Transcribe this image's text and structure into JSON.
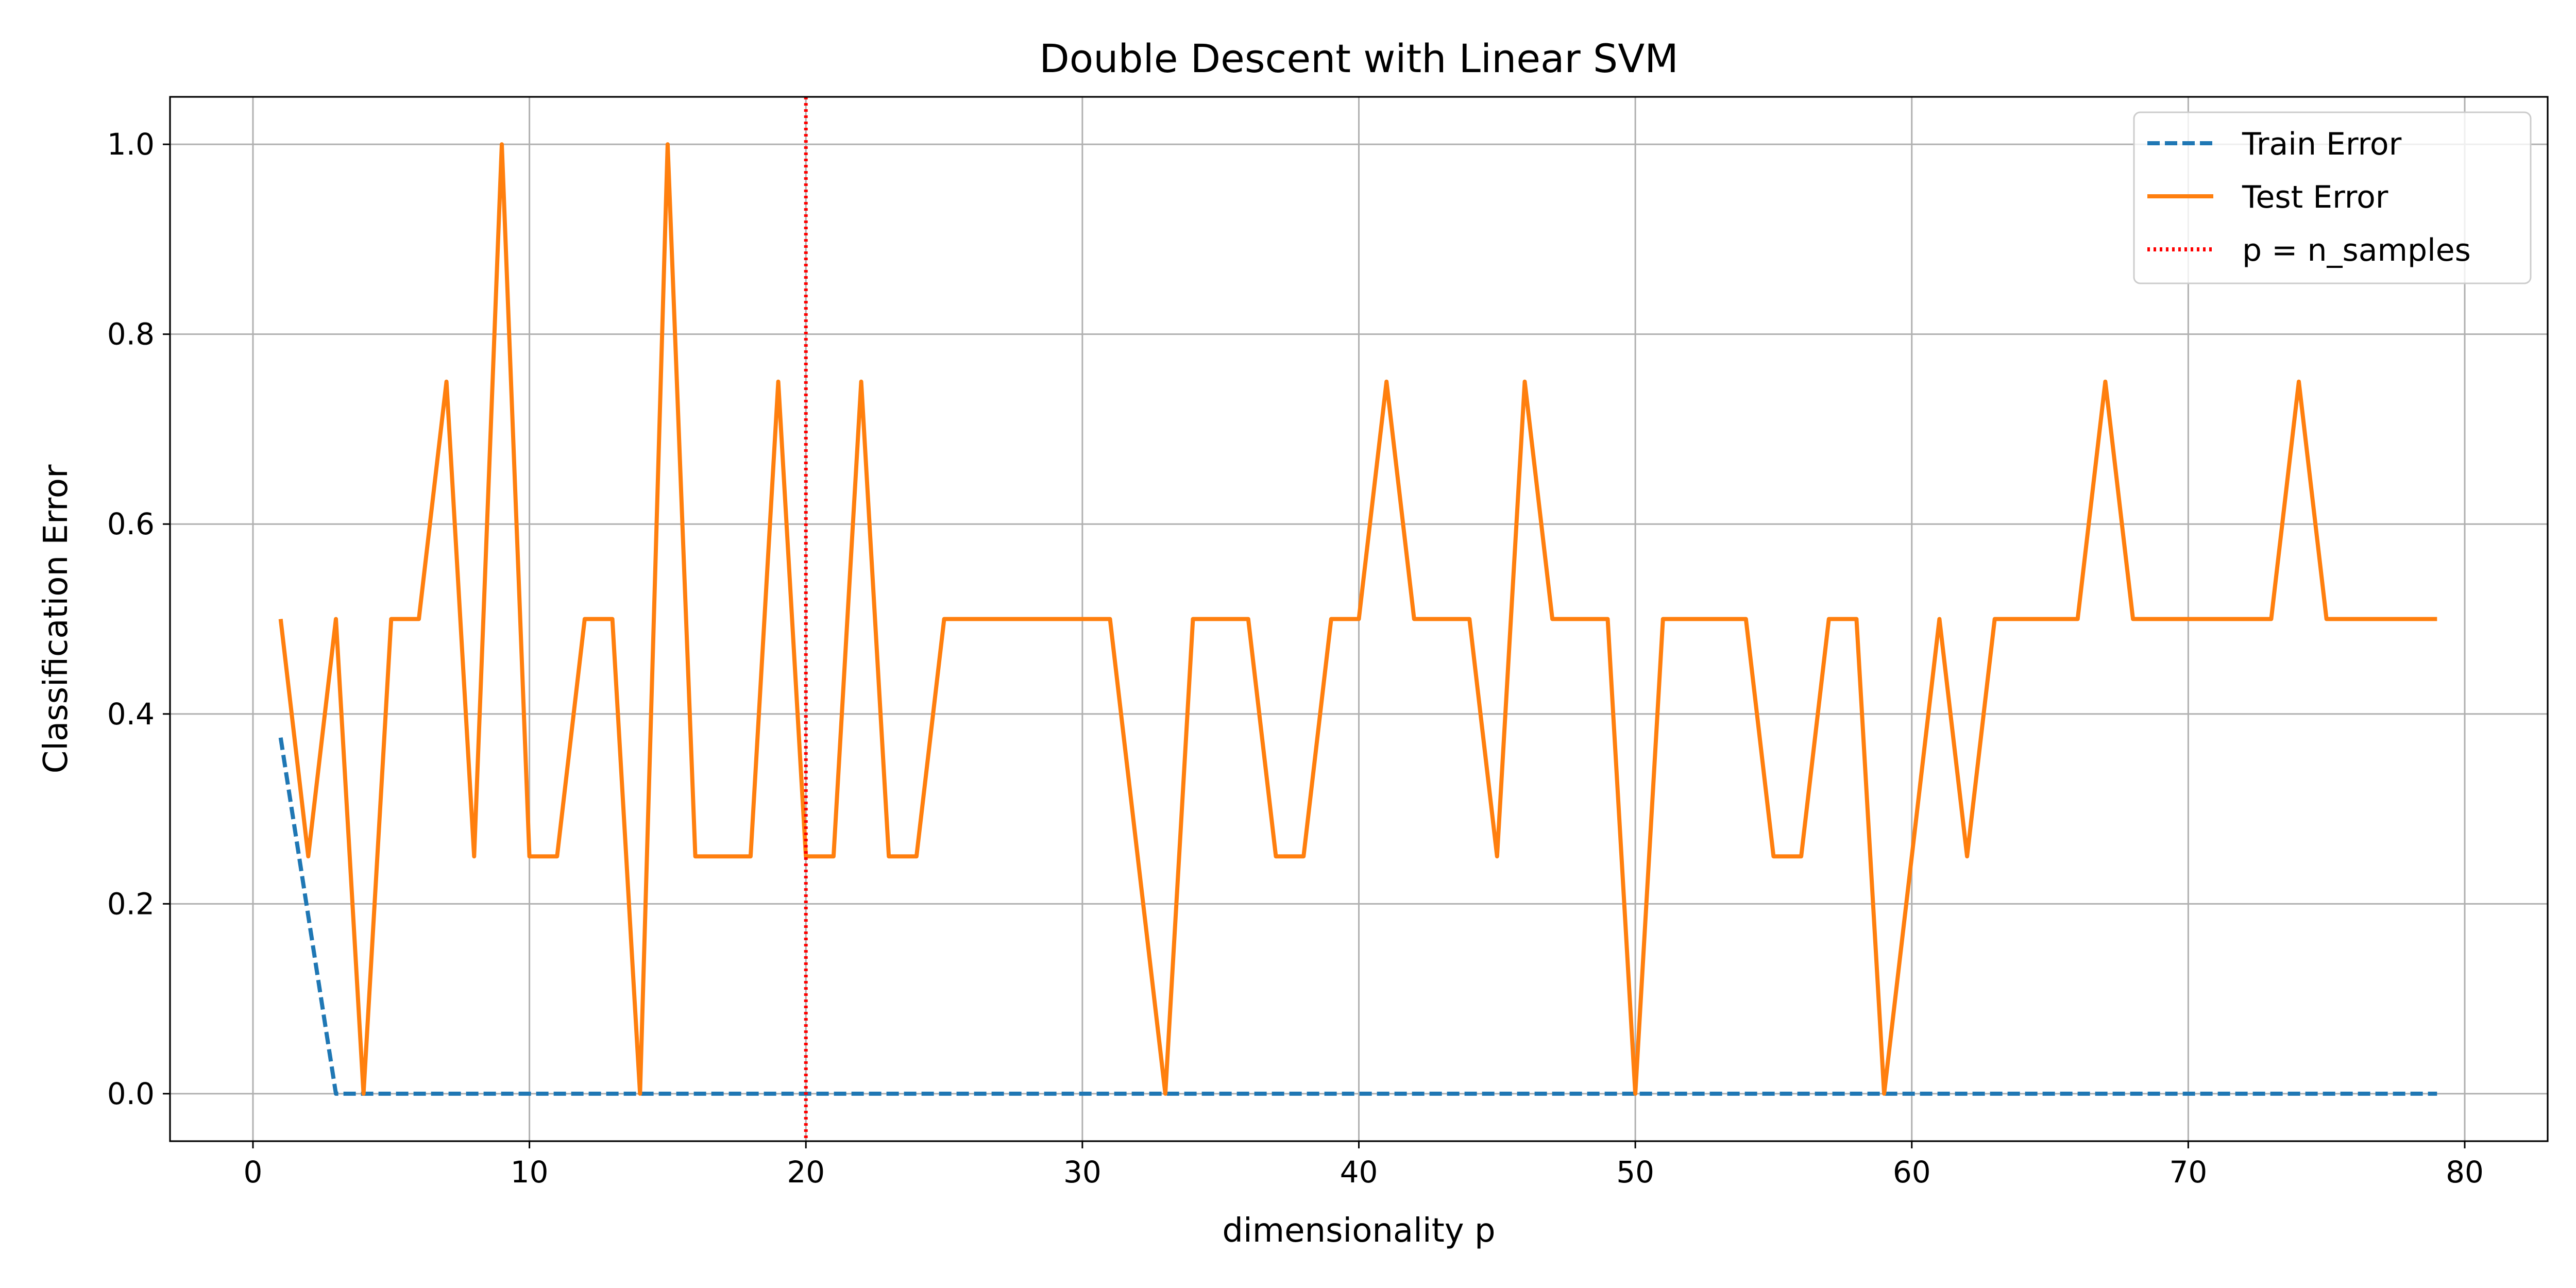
{
  "chart_data": {
    "type": "line",
    "title": "Double Descent with Linear SVM",
    "xlabel": "dimensionality p",
    "ylabel": "Classification Error",
    "xlim": [
      -3,
      83
    ],
    "ylim": [
      -0.05,
      1.05
    ],
    "xticks": [
      0,
      10,
      20,
      30,
      40,
      50,
      60,
      70,
      80
    ],
    "xtick_labels": [
      "0",
      "10",
      "20",
      "30",
      "40",
      "50",
      "60",
      "70",
      "80"
    ],
    "yticks": [
      0.0,
      0.2,
      0.4,
      0.6,
      0.8,
      1.0
    ],
    "ytick_labels": [
      "0.0",
      "0.2",
      "0.4",
      "0.6",
      "0.8",
      "1.0"
    ],
    "grid": true,
    "legend_position": "top-right",
    "x": [
      1,
      2,
      3,
      4,
      5,
      6,
      7,
      8,
      9,
      10,
      11,
      12,
      13,
      14,
      15,
      16,
      17,
      18,
      19,
      20,
      21,
      22,
      23,
      24,
      25,
      26,
      27,
      28,
      29,
      30,
      31,
      32,
      33,
      34,
      35,
      36,
      37,
      38,
      39,
      40,
      41,
      42,
      43,
      44,
      45,
      46,
      47,
      48,
      49,
      50,
      51,
      52,
      53,
      54,
      55,
      56,
      57,
      58,
      59,
      60,
      61,
      62,
      63,
      64,
      65,
      66,
      67,
      68,
      69,
      70,
      71,
      72,
      73,
      74,
      75,
      76,
      77,
      78,
      79
    ],
    "series": [
      {
        "name": "Train Error",
        "color": "#1f77b4",
        "style": "dashed",
        "values": [
          0.375,
          0.1875,
          0,
          0,
          0,
          0,
          0,
          0,
          0,
          0,
          0,
          0,
          0,
          0,
          0,
          0,
          0,
          0,
          0,
          0,
          0,
          0,
          0,
          0,
          0,
          0,
          0,
          0,
          0,
          0,
          0,
          0,
          0,
          0,
          0,
          0,
          0,
          0,
          0,
          0,
          0,
          0,
          0,
          0,
          0,
          0,
          0,
          0,
          0,
          0,
          0,
          0,
          0,
          0,
          0,
          0,
          0,
          0,
          0,
          0,
          0,
          0,
          0,
          0,
          0,
          0,
          0,
          0,
          0,
          0,
          0,
          0,
          0,
          0,
          0,
          0,
          0,
          0,
          0
        ]
      },
      {
        "name": "Test Error",
        "color": "#ff7f0e",
        "style": "solid",
        "values": [
          0.5,
          0.25,
          0.5,
          0,
          0.5,
          0.5,
          0.75,
          0.25,
          1.0,
          0.25,
          0.25,
          0.5,
          0.5,
          0,
          1.0,
          0.25,
          0.25,
          0.25,
          0.75,
          0.25,
          0.25,
          0.75,
          0.25,
          0.25,
          0.5,
          0.5,
          0.5,
          0.5,
          0.5,
          0.5,
          0.5,
          0.25,
          0,
          0.5,
          0.5,
          0.5,
          0.25,
          0.25,
          0.5,
          0.5,
          0.75,
          0.5,
          0.5,
          0.5,
          0.25,
          0.75,
          0.5,
          0.5,
          0.5,
          0,
          0.5,
          0.5,
          0.5,
          0.5,
          0.25,
          0.25,
          0.5,
          0.5,
          0,
          0.25,
          0.5,
          0.25,
          0.5,
          0.5,
          0.5,
          0.5,
          0.75,
          0.5,
          0.5,
          0.5,
          0.5,
          0.5,
          0.5,
          0.75,
          0.5,
          0.5,
          0.5,
          0.5,
          0.5
        ]
      }
    ],
    "vline": {
      "x": 20,
      "name": "p = n_samples",
      "color": "#ff0000",
      "style": "dotted"
    }
  }
}
